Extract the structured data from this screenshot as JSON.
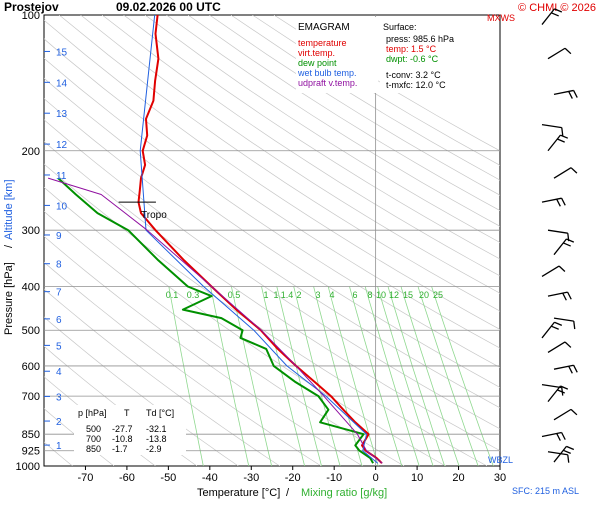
{
  "header": {
    "station": "Prostejov",
    "date": "09.02.2026 00 UTC",
    "mxws_label": "MXWS",
    "copyright": "© CHMI © 2026"
  },
  "legend": {
    "title": "EMAGRAM",
    "items": [
      {
        "label": "temperature",
        "color": "#e00000"
      },
      {
        "label": "virt.temp.",
        "color": "#e00000"
      },
      {
        "label": "dew point",
        "color": "#009000"
      },
      {
        "label": "wet bulb temp.",
        "color": "#2060e0"
      },
      {
        "label": "udpraft v.temp.",
        "color": "#9010a0"
      }
    ]
  },
  "surface": {
    "title": "Surface:",
    "press": "press: 985.6 hPa",
    "temp": "temp: 1.5 °C",
    "dwpt": "dwpt: -0.6 °C",
    "tconv": "t-conv: 3.2 °C",
    "tmxfc": "t-mxfc: 12.0 °C"
  },
  "axes": {
    "ylabel_pressure": "Pressure [hPa]",
    "ylabel_sep": "/",
    "ylabel_altitude": "Altitude [km]",
    "xlabel_temp": "Temperature [°C]",
    "xlabel_sep": "/",
    "xlabel_mix": "Mixing ratio [g/kg]",
    "sfc": "SFC: 215 m ASL",
    "wbzl": "WBZL",
    "tropo": "Tropo"
  },
  "table": {
    "headers": [
      "p [hPa]",
      "T",
      "Td [°C]"
    ],
    "rows": [
      [
        "500",
        "-27.7",
        "-32.1"
      ],
      [
        "700",
        "-10.8",
        "-13.8"
      ],
      [
        "850",
        "-1.7",
        "-2.9"
      ]
    ]
  },
  "chart_data": {
    "type": "line",
    "diagram": "emagram",
    "xlim": [
      -80,
      30
    ],
    "x_ticks": [
      -70,
      -60,
      -50,
      -40,
      -30,
      -20,
      -10,
      0,
      10,
      20,
      30
    ],
    "ylim_hpa": [
      1000,
      100
    ],
    "y_scale": "log",
    "pressure_ticks": [
      100,
      200,
      300,
      400,
      500,
      600,
      700,
      850,
      925,
      1000
    ],
    "pressure_gridlines": [
      200,
      300,
      400,
      500,
      600,
      700,
      850,
      925
    ],
    "altitude_ticks_km": [
      1,
      2,
      3,
      4,
      5,
      6,
      7,
      8,
      9,
      10,
      11,
      12,
      13,
      14,
      15
    ],
    "mixing_ratio_labels": [
      "0.1",
      "0.3",
      "0.5",
      "1",
      "1",
      "1.4",
      "2",
      "3",
      "4",
      "6",
      "8",
      "10",
      "12",
      "15",
      "20",
      "25"
    ],
    "series": [
      {
        "name": "temperature",
        "color": "#e00000",
        "points": [
          [
            985.6,
            1.5
          ],
          [
            960,
            0.2
          ],
          [
            925,
            -2.4
          ],
          [
            900,
            -3.3
          ],
          [
            850,
            -1.7
          ],
          [
            800,
            -4.9
          ],
          [
            750,
            -7.8
          ],
          [
            700,
            -10.8
          ],
          [
            650,
            -14.8
          ],
          [
            600,
            -19.2
          ],
          [
            550,
            -23.6
          ],
          [
            500,
            -27.7
          ],
          [
            450,
            -33.6
          ],
          [
            400,
            -39.6
          ],
          [
            350,
            -46.2
          ],
          [
            300,
            -53.1
          ],
          [
            275,
            -56.6
          ],
          [
            260,
            -57.2
          ],
          [
            245,
            -56.9
          ],
          [
            230,
            -56.6
          ],
          [
            215,
            -55.6
          ],
          [
            200,
            -56.2
          ],
          [
            185,
            -55.1
          ],
          [
            170,
            -55.4
          ],
          [
            155,
            -53.6
          ],
          [
            140,
            -53.2
          ],
          [
            125,
            -52.4
          ],
          [
            110,
            -53.1
          ],
          [
            100,
            -52.6
          ]
        ]
      },
      {
        "name": "dew point",
        "color": "#009000",
        "points": [
          [
            985.6,
            -0.6
          ],
          [
            960,
            -1.3
          ],
          [
            925,
            -3.9
          ],
          [
            900,
            -4.9
          ],
          [
            850,
            -2.9
          ],
          [
            800,
            -13.4
          ],
          [
            750,
            -11.4
          ],
          [
            700,
            -13.8
          ],
          [
            650,
            -19.5
          ],
          [
            600,
            -24.6
          ],
          [
            550,
            -26.4
          ],
          [
            520,
            -32.6
          ],
          [
            500,
            -32.1
          ],
          [
            470,
            -37.2
          ],
          [
            450,
            -46.5
          ],
          [
            420,
            -39.6
          ],
          [
            400,
            -45.3
          ],
          [
            350,
            -52.4
          ],
          [
            300,
            -59.7
          ],
          [
            275,
            -67.1
          ],
          [
            250,
            -72.3
          ],
          [
            230,
            -76.6
          ]
        ]
      },
      {
        "name": "wet bulb temp.",
        "color": "#2060e0",
        "points": [
          [
            985.6,
            0.5
          ],
          [
            925,
            -3.1
          ],
          [
            850,
            -2.2
          ],
          [
            700,
            -12.0
          ],
          [
            600,
            -21.4
          ],
          [
            500,
            -29.4
          ],
          [
            400,
            -41.5
          ],
          [
            300,
            -55.4
          ],
          [
            200,
            -56.8
          ],
          [
            100,
            -53.3
          ]
        ]
      },
      {
        "name": "udpraft v.temp.",
        "color": "#9010a0",
        "points": [
          [
            985.6,
            1.6
          ],
          [
            925,
            -2.2
          ],
          [
            850,
            -4.4
          ],
          [
            700,
            -12.5
          ],
          [
            600,
            -19.2
          ],
          [
            500,
            -27.6
          ],
          [
            400,
            -39.6
          ],
          [
            300,
            -55.1
          ],
          [
            250,
            -66.2
          ],
          [
            230,
            -79.0
          ]
        ]
      }
    ]
  }
}
